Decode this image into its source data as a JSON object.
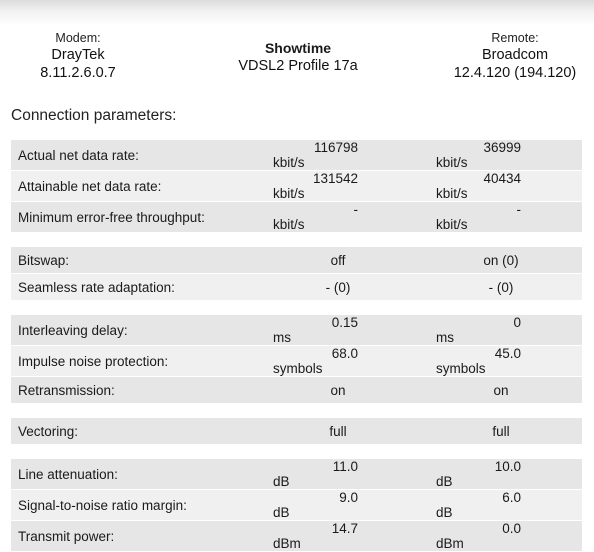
{
  "header": {
    "modem": {
      "label": "Modem:",
      "name": "DrayTek",
      "version": "8.11.2.6.0.7"
    },
    "showtime": {
      "title": "Showtime",
      "profile": "VDSL2 Profile 17a"
    },
    "remote": {
      "label": "Remote:",
      "name": "Broadcom",
      "version": "12.4.120 (194.120)"
    }
  },
  "section_title": "Connection parameters:",
  "groups": [
    [
      {
        "label": "Actual net data rate:",
        "down": "116798",
        "down_unit": "kbit/s",
        "up": "36999",
        "up_unit": "kbit/s"
      },
      {
        "label": "Attainable net data rate:",
        "down": "131542",
        "down_unit": "kbit/s",
        "up": "40434",
        "up_unit": "kbit/s"
      },
      {
        "label": "Minimum error-free throughput:",
        "down": "-",
        "down_unit": "kbit/s",
        "up": "-",
        "up_unit": "kbit/s"
      }
    ],
    [
      {
        "label": "Bitswap:",
        "down": "off",
        "up": "on (0)"
      },
      {
        "label": "Seamless rate adaptation:",
        "down": "- (0)",
        "up": "- (0)"
      }
    ],
    [
      {
        "label": "Interleaving delay:",
        "down": "0.15",
        "down_unit": "ms",
        "up": "0",
        "up_unit": "ms"
      },
      {
        "label": "Impulse noise protection:",
        "down": "68.0",
        "down_unit": "symbols",
        "up": "45.0",
        "up_unit": "symbols"
      },
      {
        "label": "Retransmission:",
        "down": "on",
        "up": "on"
      }
    ],
    [
      {
        "label": "Vectoring:",
        "down": "full",
        "up": "full"
      }
    ],
    [
      {
        "label": "Line attenuation:",
        "down": "11.0",
        "down_unit": "dB",
        "up": "10.0",
        "up_unit": "dB"
      },
      {
        "label": "Signal-to-noise ratio margin:",
        "down": "9.0",
        "down_unit": "dB",
        "up": "6.0",
        "up_unit": "dB"
      },
      {
        "label": "Transmit power:",
        "down": "14.7",
        "down_unit": "dBm",
        "up": "0.0",
        "up_unit": "dBm"
      }
    ]
  ]
}
